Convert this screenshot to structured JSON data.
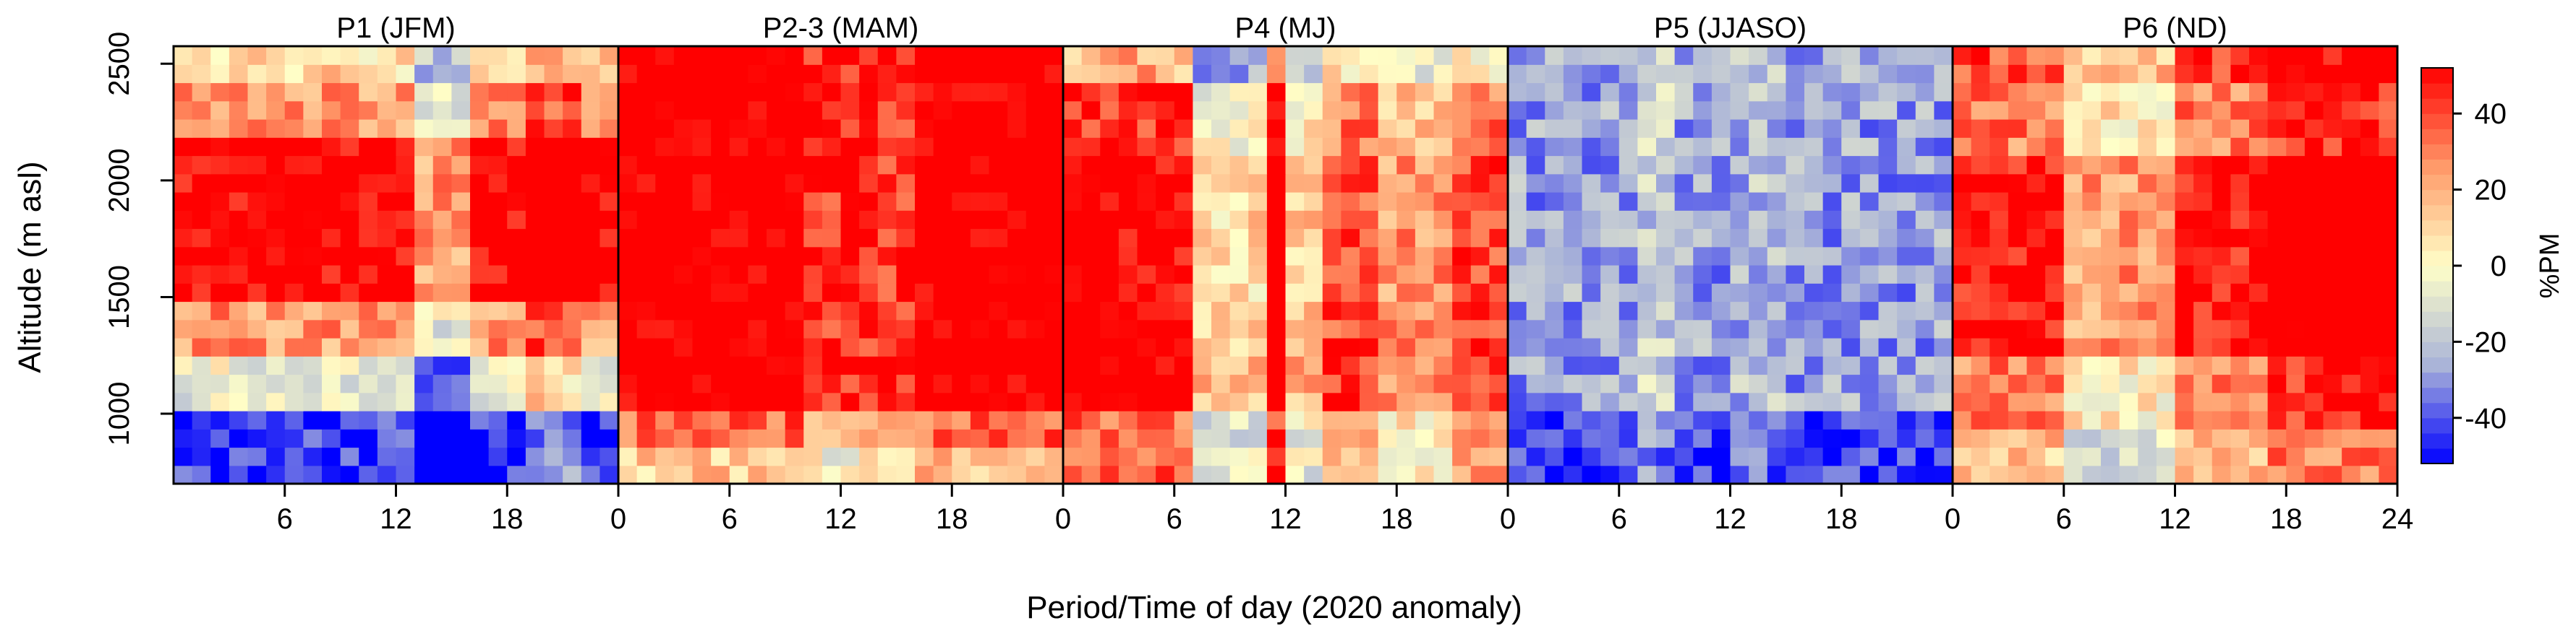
{
  "chart_data": {
    "type": "heatmap",
    "xlabel": "Period/Time of day (2020 anomaly)",
    "ylabel": "Altitude (m asl)",
    "x_range_hours": [
      0,
      24
    ],
    "y_range_m": [
      700,
      2575
    ],
    "x_ticks": [
      {
        "value": 0,
        "label": "0"
      },
      {
        "value": 6,
        "label": "6"
      },
      {
        "value": 12,
        "label": "12"
      },
      {
        "value": 18,
        "label": "18"
      },
      {
        "value": 24,
        "label": "24"
      }
    ],
    "y_ticks": [
      {
        "value": 1000,
        "label": "1000"
      },
      {
        "value": 1500,
        "label": "1500"
      },
      {
        "value": 2000,
        "label": "2000"
      },
      {
        "value": 2500,
        "label": "2500"
      }
    ],
    "grid_cols": 24,
    "grid_rows": 24,
    "colorbar": {
      "label": "%PM",
      "range": [
        -52,
        52
      ],
      "ticks": [
        {
          "value": 40,
          "label": "40"
        },
        {
          "value": 20,
          "label": "20"
        },
        {
          "value": 0,
          "label": "0"
        },
        {
          "value": -20,
          "label": "-20"
        },
        {
          "value": -40,
          "label": "-40"
        }
      ],
      "colors": {
        "neg": "#0000ff",
        "mid_neg": "#aab4d8",
        "zero": "#ffffc8",
        "mid_pos": "#ff9a6a",
        "pos": "#ff0000"
      }
    },
    "panels": [
      {
        "title": "P1 (JFM)",
        "bands": [
          {
            "alt": [
              700,
              1000
            ],
            "value": -45
          },
          {
            "alt": [
              1000,
              1250
            ],
            "value": -5
          },
          {
            "alt": [
              1250,
              1500
            ],
            "value": 25
          },
          {
            "alt": [
              1500,
              2150
            ],
            "value": 55
          },
          {
            "alt": [
              2150,
              2400
            ],
            "value": 25
          },
          {
            "alt": [
              2400,
              2575
            ],
            "value": 10
          }
        ],
        "hour_adjust": [
          {
            "hours": [
              13,
              16
            ],
            "delta": -30
          },
          {
            "hours": [
              19,
              22
            ],
            "delta": 15
          }
        ]
      },
      {
        "title": "P2-3 (MAM)",
        "bands": [
          {
            "alt": [
              700,
              850
            ],
            "value": 15
          },
          {
            "alt": [
              850,
              1000
            ],
            "value": 35
          },
          {
            "alt": [
              1000,
              2575
            ],
            "value": 60
          }
        ],
        "hour_adjust": [
          {
            "hours": [
              10,
              16
            ],
            "delta": -15
          }
        ]
      },
      {
        "title": "P4 (MJ)",
        "bands": [
          {
            "alt": [
              700,
              1000
            ],
            "value": 5
          },
          {
            "alt": [
              1000,
              1300
            ],
            "value": 30
          },
          {
            "alt": [
              1300,
              2100
            ],
            "value": 25
          },
          {
            "alt": [
              2100,
              2400
            ],
            "value": 15
          },
          {
            "alt": [
              2400,
              2575
            ],
            "value": -10
          }
        ],
        "hour_adjust": [
          {
            "hours": [
              0,
              7
            ],
            "delta": 30
          },
          {
            "hours": [
              7,
              11
            ],
            "delta": -15
          },
          {
            "hours": [
              11,
              12
            ],
            "delta": 40
          },
          {
            "hours": [
              12,
              14
            ],
            "delta": -10
          },
          {
            "hours": [
              14,
              17
            ],
            "delta": 15
          },
          {
            "hours": [
              21,
              24
            ],
            "delta": 15
          }
        ]
      },
      {
        "title": "P5 (JJASO)",
        "bands": [
          {
            "alt": [
              700,
              1000
            ],
            "value": -45
          },
          {
            "alt": [
              1000,
              2575
            ],
            "value": -28
          }
        ],
        "hour_adjust": [
          {
            "hours": [
              7,
              9
            ],
            "delta": 12
          },
          {
            "hours": [
              12,
              15
            ],
            "delta": 6
          }
        ]
      },
      {
        "title": "P6 (ND)",
        "bands": [
          {
            "alt": [
              700,
              950
            ],
            "value": 15
          },
          {
            "alt": [
              950,
              1250
            ],
            "value": 30
          },
          {
            "alt": [
              1250,
              2100
            ],
            "value": 50
          },
          {
            "alt": [
              2100,
              2450
            ],
            "value": 30
          },
          {
            "alt": [
              2450,
              2575
            ],
            "value": 40
          }
        ],
        "hour_adjust": [
          {
            "hours": [
              6,
              12
            ],
            "delta": -25
          },
          {
            "hours": [
              17,
              24
            ],
            "delta": 15
          }
        ]
      }
    ]
  }
}
